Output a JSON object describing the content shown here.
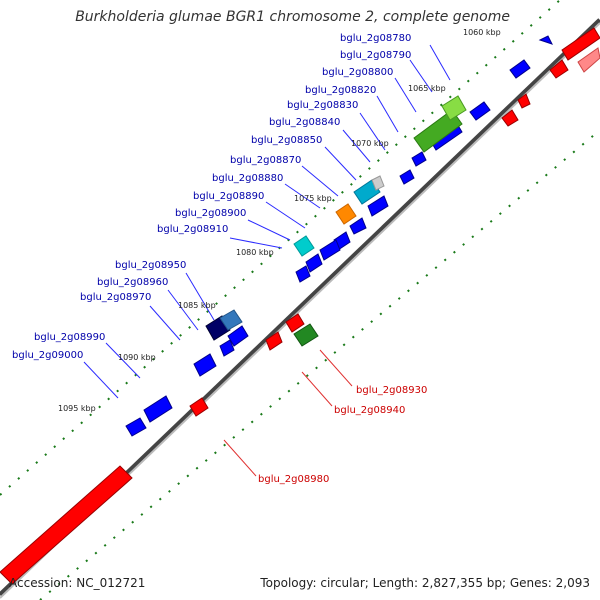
{
  "title": "Burkholderia glumae BGR1 chromosome 2, complete genome",
  "footer": {
    "accession": "Accession: NC_012721",
    "summary": "Topology: circular; Length: 2,827,355 bp; Genes: 2,093"
  },
  "colors": {
    "forward_gene": "#0000ff",
    "reverse_gene": "#ff0000",
    "label_forward": "#0000aa",
    "label_reverse": "#cc0000",
    "backbone": "#808080",
    "tick": "#1a7a1a"
  },
  "ticks": [
    "1060 kbp",
    "1065 kbp",
    "1070 kbp",
    "1075 kbp",
    "1080 kbp",
    "1085 kbp",
    "1090 kbp",
    "1095 kbp"
  ],
  "gene_labels_forward": [
    "bglu_2g08780",
    "bglu_2g08790",
    "bglu_2g08800",
    "bglu_2g08820",
    "bglu_2g08830",
    "bglu_2g08840",
    "bglu_2g08850",
    "bglu_2g08870",
    "bglu_2g08880",
    "bglu_2g08890",
    "bglu_2g08900",
    "bglu_2g08910",
    "bglu_2g08950",
    "bglu_2g08960",
    "bglu_2g08970",
    "bglu_2g08990",
    "bglu_2g09000"
  ],
  "gene_labels_reverse": [
    "bglu_2g08930",
    "bglu_2g08940",
    "bglu_2g08980"
  ]
}
